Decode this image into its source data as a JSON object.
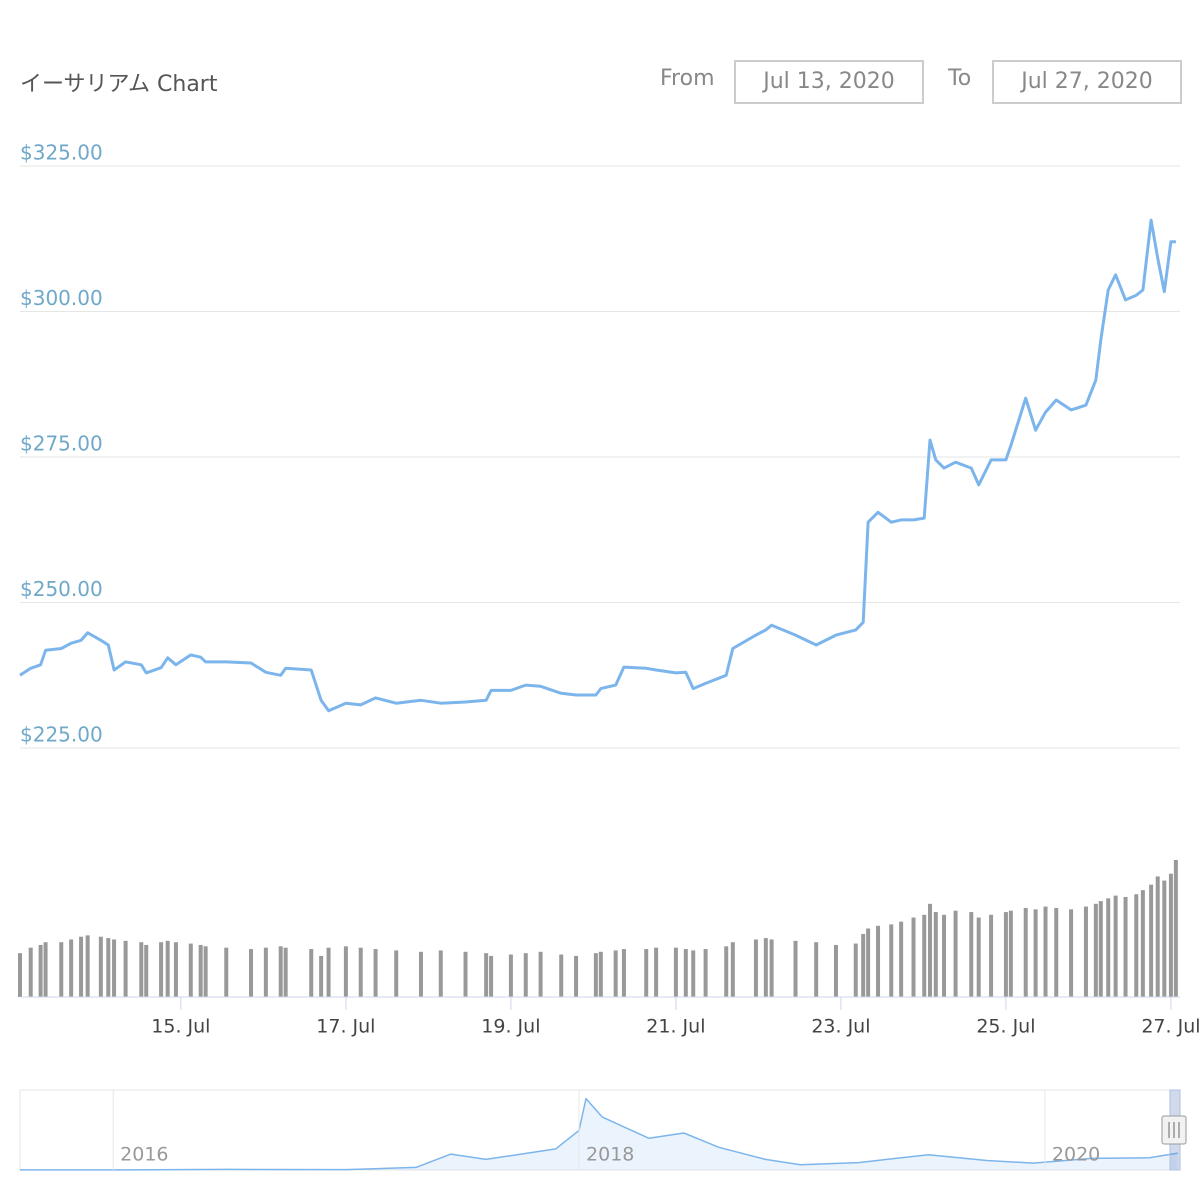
{
  "header": {
    "title": "イーサリアム Chart",
    "from_label": "From",
    "from_date": "Jul 13, 2020",
    "to_label": "To",
    "to_date": "Jul 27, 2020"
  },
  "chart_data": [
    {
      "type": "line",
      "color": "#7cb5ec",
      "x": [
        13.05,
        13.18,
        13.3,
        13.36,
        13.55,
        13.67,
        13.79,
        13.87,
        14.03,
        14.12,
        14.19,
        14.33,
        14.52,
        14.58,
        14.76,
        14.84,
        14.94,
        15.12,
        15.24,
        15.3,
        15.55,
        15.85,
        16.03,
        16.21,
        16.27,
        16.58,
        16.7,
        16.79,
        17.0,
        17.18,
        17.36,
        17.61,
        17.91,
        18.15,
        18.45,
        18.7,
        18.76,
        19.0,
        19.18,
        19.36,
        19.61,
        19.79,
        20.03,
        20.09,
        20.27,
        20.37,
        20.64,
        20.76,
        21.0,
        21.12,
        21.21,
        21.36,
        21.61,
        21.69,
        21.97,
        22.09,
        22.16,
        22.45,
        22.7,
        22.94,
        23.18,
        23.27,
        23.33,
        23.45,
        23.61,
        23.73,
        23.88,
        24.01,
        24.08,
        24.15,
        24.25,
        24.39,
        24.58,
        24.67,
        24.82,
        25.0,
        25.06,
        25.24,
        25.36,
        25.48,
        25.61,
        25.79,
        25.97,
        26.09,
        26.15,
        26.24,
        26.33,
        26.45,
        26.58,
        26.66,
        26.76,
        26.84,
        26.92,
        27.0,
        27.06
      ],
      "values": [
        237.5,
        238.7,
        239.3,
        241.8,
        242.1,
        243,
        243.5,
        244.8,
        243.5,
        242.7,
        238.4,
        239.8,
        239.3,
        237.9,
        238.8,
        240.5,
        239.3,
        241,
        240.6,
        239.8,
        239.8,
        239.6,
        238,
        237.5,
        238.7,
        238.4,
        233.2,
        231.4,
        232.7,
        232.4,
        233.6,
        232.7,
        233.2,
        232.7,
        232.9,
        233.2,
        234.9,
        234.9,
        235.8,
        235.6,
        234.4,
        234.1,
        234.1,
        235.2,
        235.8,
        238.9,
        238.7,
        238.4,
        237.9,
        238,
        235.2,
        236.1,
        237.5,
        242.1,
        244.4,
        245.3,
        246.1,
        244.4,
        242.7,
        244.4,
        245.3,
        246.6,
        263.8,
        265.5,
        263.8,
        264.2,
        264.2,
        264.5,
        277.9,
        274.5,
        273.1,
        274.1,
        273.1,
        270.2,
        274.5,
        274.5,
        277,
        285.1,
        279.6,
        282.7,
        284.8,
        283.1,
        283.9,
        288.2,
        295.1,
        303.7,
        306.3,
        302,
        302.8,
        303.7,
        315.7,
        309.2,
        303.4,
        312,
        312
      ],
      "xlim": [
        13.05,
        27.11
      ],
      "xticks": [
        {
          "value": 15,
          "label": "15. Jul"
        },
        {
          "value": 17,
          "label": "17. Jul"
        },
        {
          "value": 19,
          "label": "19. Jul"
        },
        {
          "value": 21,
          "label": "21. Jul"
        },
        {
          "value": 23,
          "label": "23. Jul"
        },
        {
          "value": 25,
          "label": "25. Jul"
        },
        {
          "value": 27,
          "label": "27. Jul"
        }
      ],
      "ylim": [
        225,
        325
      ],
      "yticks": [
        {
          "value": 225,
          "label": "$225.00"
        },
        {
          "value": 250,
          "label": "$250.00"
        },
        {
          "value": 275,
          "label": "$275.00"
        },
        {
          "value": 300,
          "label": "$300.00"
        },
        {
          "value": 325,
          "label": "$325.00"
        }
      ],
      "grid": true
    },
    {
      "type": "bar",
      "color": "#999999",
      "x": [
        13.05,
        13.18,
        13.3,
        13.36,
        13.55,
        13.67,
        13.79,
        13.87,
        14.03,
        14.12,
        14.19,
        14.33,
        14.52,
        14.58,
        14.76,
        14.84,
        14.94,
        15.12,
        15.24,
        15.3,
        15.55,
        15.85,
        16.03,
        16.21,
        16.27,
        16.58,
        16.7,
        16.79,
        17.0,
        17.18,
        17.36,
        17.61,
        17.91,
        18.15,
        18.45,
        18.7,
        18.76,
        19.0,
        19.18,
        19.36,
        19.61,
        19.79,
        20.03,
        20.09,
        20.27,
        20.37,
        20.64,
        20.76,
        21.0,
        21.12,
        21.21,
        21.36,
        21.61,
        21.69,
        21.97,
        22.09,
        22.16,
        22.45,
        22.7,
        22.94,
        23.18,
        23.27,
        23.33,
        23.45,
        23.61,
        23.73,
        23.88,
        24.01,
        24.08,
        24.15,
        24.25,
        24.39,
        24.58,
        24.67,
        24.82,
        25.0,
        25.06,
        25.24,
        25.36,
        25.48,
        25.61,
        25.79,
        25.97,
        26.09,
        26.15,
        26.24,
        26.33,
        26.45,
        26.58,
        26.66,
        26.76,
        26.84,
        26.92,
        27.0,
        27.06
      ],
      "values": [
        32,
        36,
        38,
        40,
        40,
        42,
        44,
        45,
        44,
        43,
        42,
        41,
        40,
        38,
        40,
        41,
        40,
        39,
        38,
        37,
        36,
        35,
        36,
        37,
        36,
        35,
        30,
        36,
        37,
        36,
        35,
        34,
        33,
        34,
        33,
        32,
        30,
        31,
        32,
        33,
        31,
        30,
        32,
        33,
        34,
        35,
        35,
        36,
        36,
        35,
        34,
        35,
        37,
        40,
        42,
        43,
        42,
        41,
        40,
        38,
        39,
        46,
        50,
        52,
        53,
        55,
        58,
        60,
        68,
        62,
        60,
        63,
        62,
        58,
        60,
        62,
        63,
        65,
        64,
        66,
        65,
        64,
        66,
        68,
        70,
        72,
        74,
        73,
        75,
        78,
        82,
        88,
        85,
        90,
        100
      ],
      "ylim": [
        0,
        100
      ]
    },
    {
      "type": "line",
      "color": "#7cb5ec",
      "x": [
        2015.6,
        2016.0,
        2016.5,
        2017.0,
        2017.3,
        2017.45,
        2017.6,
        2017.9,
        2018.0,
        2018.03,
        2018.1,
        2018.3,
        2018.45,
        2018.6,
        2018.8,
        2018.95,
        2019.2,
        2019.5,
        2019.75,
        2019.95,
        2020.2,
        2020.45,
        2020.57
      ],
      "values": [
        1,
        1,
        12,
        8,
        50,
        300,
        200,
        400,
        750,
        1350,
        1000,
        600,
        700,
        430,
        200,
        100,
        140,
        290,
        180,
        130,
        220,
        230,
        320
      ],
      "xlim": [
        2015.6,
        2020.58
      ],
      "xticks": [
        2016,
        2018,
        2020
      ],
      "ylim": [
        0,
        1400
      ]
    }
  ]
}
